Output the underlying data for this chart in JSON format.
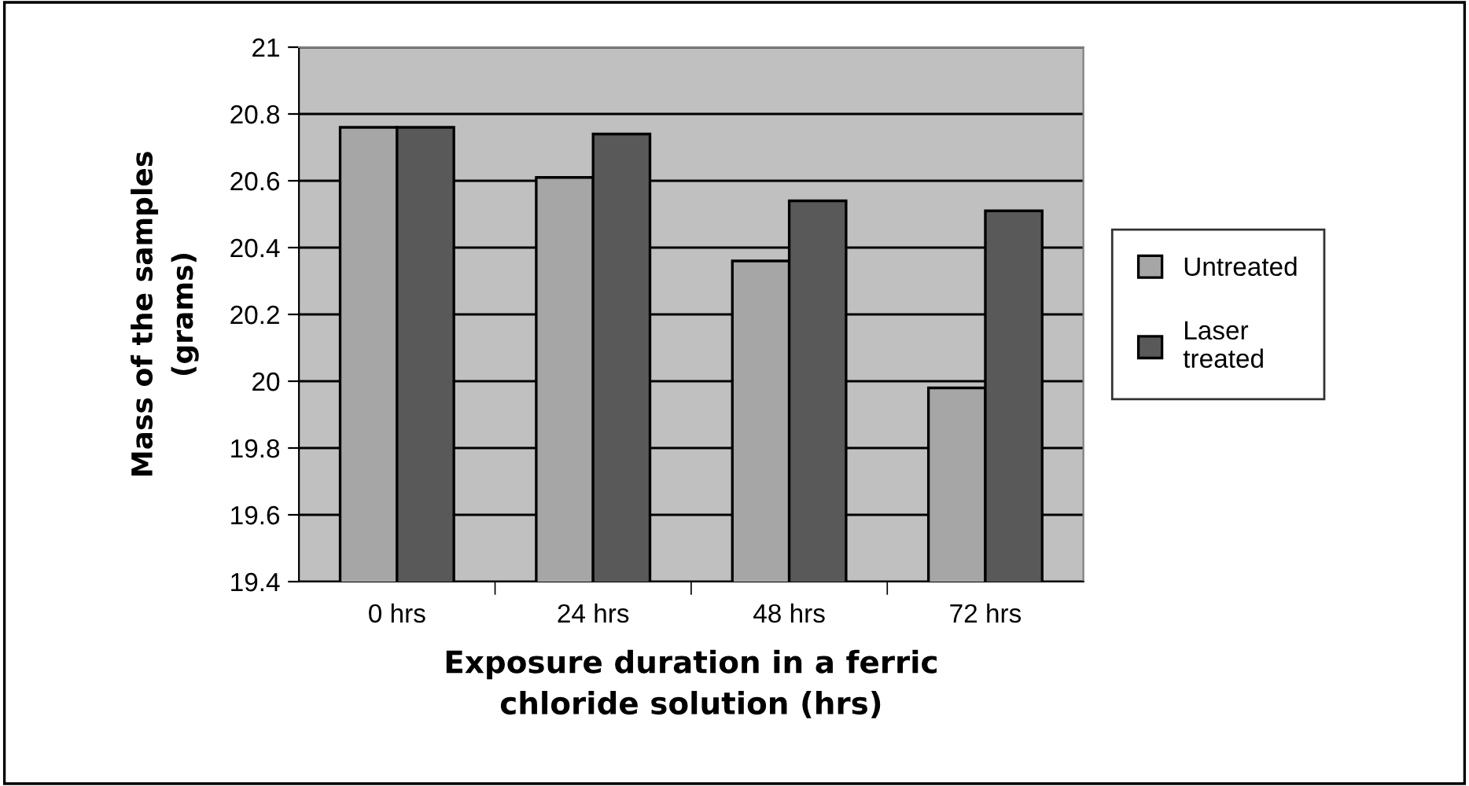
{
  "chart_data": {
    "type": "bar",
    "xlabel": "Exposure duration in a ferric\nchloride solution (hrs)",
    "ylabel": "Mass of the samples\n(grams)",
    "categories": [
      "0 hrs",
      "24 hrs",
      "48 hrs",
      "72 hrs"
    ],
    "series": [
      {
        "name": "Untreated",
        "color": "#a6a6a6",
        "values": [
          20.76,
          20.61,
          20.36,
          19.98
        ]
      },
      {
        "name": "Laser\ntreated",
        "color": "#595959",
        "values": [
          20.76,
          20.74,
          20.54,
          20.51
        ]
      }
    ],
    "ylim": [
      19.4,
      21
    ],
    "yticks": [
      19.4,
      19.6,
      19.8,
      20,
      20.2,
      20.4,
      20.6,
      20.8,
      21
    ],
    "grid": "y",
    "legend": "right"
  }
}
